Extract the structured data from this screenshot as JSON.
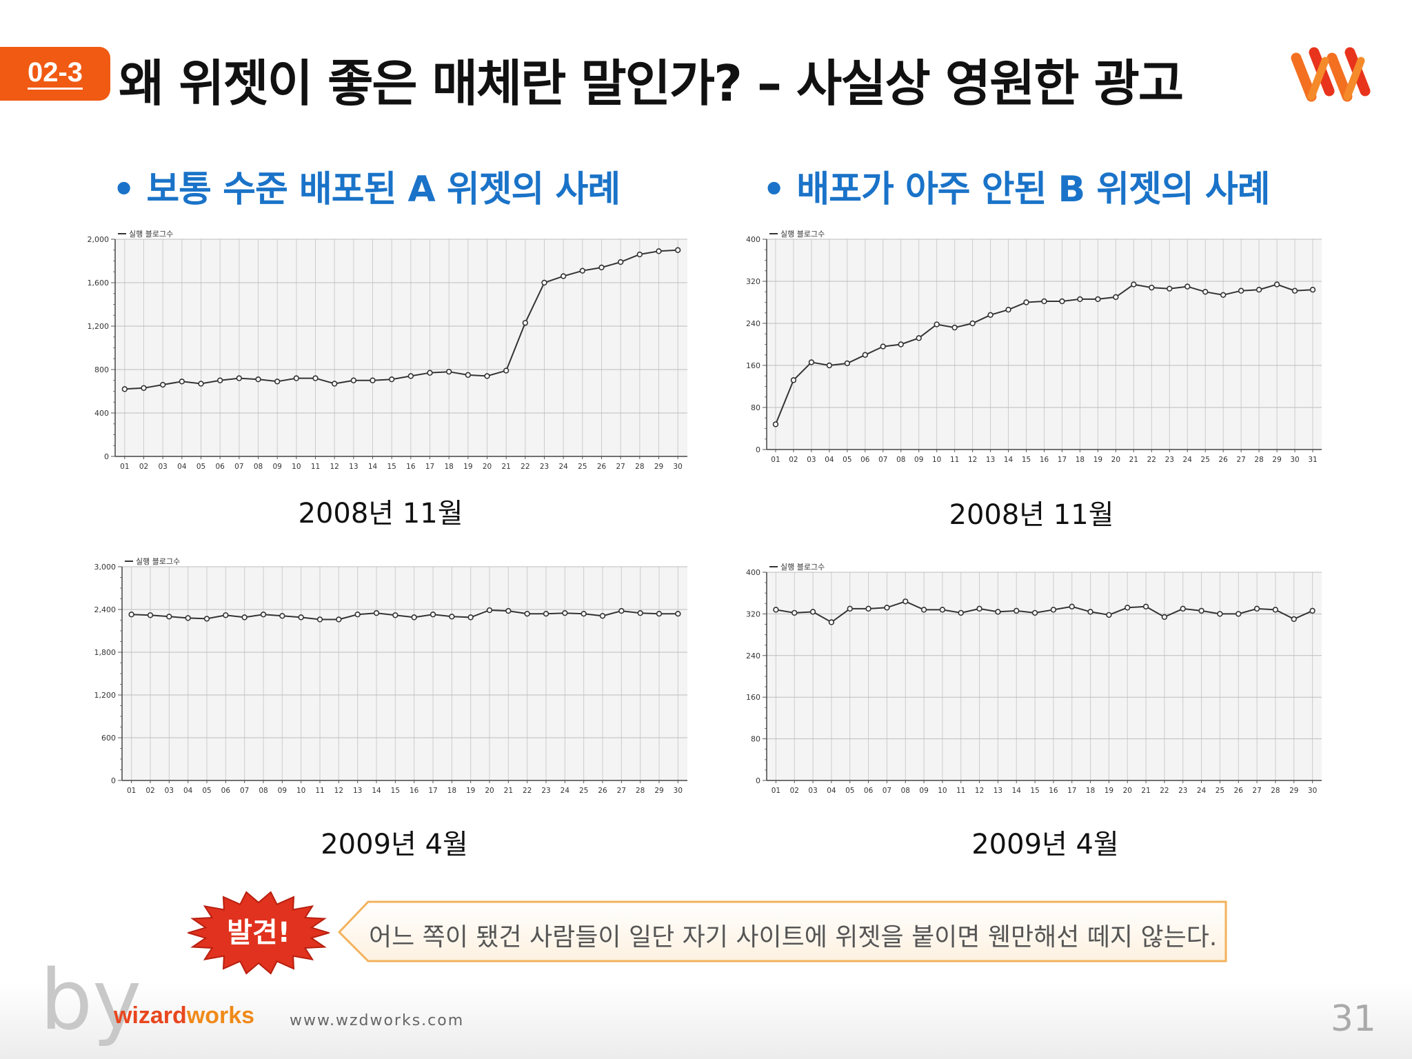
{
  "header": {
    "badge": "02-3",
    "title": "왜 위젯이 좋은 매체란 말인가? – 사실상 영원한 광고",
    "logo_icon": "wizardworks-w-logo-icon"
  },
  "sections": {
    "left": "• 보통 수준 배포된 A 위젯의 사례",
    "right": "• 배포가 아주 안된 B 위젯의 사례"
  },
  "captions": {
    "a_2008": "2008년 11월",
    "b_2008": "2008년 11월",
    "a_2009": "2009년 4월",
    "b_2009": "2009년 4월"
  },
  "colors": {
    "badge": "#f05a12",
    "section_text": "#1a73c8",
    "line": "#333333",
    "grid": "#cccccc",
    "plot_bg": "#f4f4f4",
    "burst": "#e0321e",
    "callout_border": "#f2b25c"
  },
  "chart_data": [
    {
      "id": "a2008",
      "type": "line",
      "legend": "실행 블로그수",
      "x": [
        "01",
        "02",
        "03",
        "04",
        "05",
        "06",
        "07",
        "08",
        "09",
        "10",
        "11",
        "12",
        "13",
        "14",
        "15",
        "16",
        "17",
        "18",
        "19",
        "20",
        "21",
        "22",
        "23",
        "24",
        "25",
        "26",
        "27",
        "28",
        "29",
        "30"
      ],
      "ylim": [
        0,
        2000
      ],
      "yticks": [
        "0",
        "400",
        "800",
        "1,200",
        "1,600",
        "2,000"
      ],
      "ytick_values": [
        0,
        400,
        800,
        1200,
        1600,
        2000
      ],
      "series": [
        {
          "values": [
            620,
            630,
            660,
            690,
            670,
            700,
            720,
            710,
            690,
            720,
            720,
            670,
            700,
            700,
            710,
            740,
            770,
            780,
            750,
            740,
            790,
            1230,
            1600,
            1660,
            1710,
            1740,
            1790,
            1860,
            1890,
            1900
          ]
        }
      ]
    },
    {
      "id": "b2008",
      "type": "line",
      "legend": "실행 블로그수",
      "x": [
        "01",
        "02",
        "03",
        "04",
        "05",
        "06",
        "07",
        "08",
        "09",
        "10",
        "11",
        "12",
        "13",
        "14",
        "15",
        "16",
        "17",
        "18",
        "19",
        "20",
        "21",
        "22",
        "23",
        "24",
        "25",
        "26",
        "27",
        "28",
        "29",
        "30",
        "31"
      ],
      "ylim": [
        0,
        400
      ],
      "yticks": [
        "0",
        "80",
        "160",
        "240",
        "320",
        "400"
      ],
      "ytick_values": [
        0,
        80,
        160,
        240,
        320,
        400
      ],
      "series": [
        {
          "values": [
            48,
            132,
            166,
            160,
            164,
            180,
            196,
            200,
            212,
            238,
            232,
            240,
            256,
            266,
            280,
            282,
            282,
            286,
            286,
            290,
            314,
            308,
            306,
            310,
            300,
            294,
            302,
            304,
            314,
            302,
            304
          ]
        }
      ]
    },
    {
      "id": "a2009",
      "type": "line",
      "legend": "실행 블로그수",
      "x": [
        "01",
        "02",
        "03",
        "04",
        "05",
        "06",
        "07",
        "08",
        "09",
        "10",
        "11",
        "12",
        "13",
        "14",
        "15",
        "16",
        "17",
        "18",
        "19",
        "20",
        "21",
        "22",
        "23",
        "24",
        "25",
        "26",
        "27",
        "28",
        "29",
        "30"
      ],
      "ylim": [
        0,
        3000
      ],
      "yticks": [
        "0",
        "600",
        "1,200",
        "1,800",
        "2,400",
        "3,000"
      ],
      "ytick_values": [
        0,
        600,
        1200,
        1800,
        2400,
        3000
      ],
      "series": [
        {
          "values": [
            2330,
            2320,
            2300,
            2280,
            2270,
            2320,
            2290,
            2330,
            2310,
            2290,
            2260,
            2260,
            2330,
            2350,
            2320,
            2290,
            2330,
            2300,
            2290,
            2390,
            2380,
            2340,
            2340,
            2350,
            2340,
            2310,
            2380,
            2350,
            2340,
            2340
          ]
        }
      ]
    },
    {
      "id": "b2009",
      "type": "line",
      "legend": "실행 블로그수",
      "x": [
        "01",
        "02",
        "03",
        "04",
        "05",
        "06",
        "07",
        "08",
        "09",
        "10",
        "11",
        "12",
        "13",
        "14",
        "15",
        "16",
        "17",
        "18",
        "19",
        "20",
        "21",
        "22",
        "23",
        "24",
        "25",
        "26",
        "27",
        "28",
        "29",
        "30"
      ],
      "ylim": [
        0,
        400
      ],
      "yticks": [
        "0",
        "80",
        "160",
        "240",
        "320",
        "400"
      ],
      "ytick_values": [
        0,
        80,
        160,
        240,
        320,
        400
      ],
      "series": [
        {
          "values": [
            328,
            322,
            324,
            304,
            330,
            330,
            332,
            344,
            328,
            328,
            322,
            330,
            324,
            326,
            322,
            328,
            334,
            324,
            318,
            332,
            334,
            314,
            330,
            326,
            320,
            320,
            330,
            328,
            310,
            326
          ]
        }
      ]
    }
  ],
  "callout": {
    "burst_label": "발견!",
    "text": "어느 쪽이 됐건 사람들이 일단 자기 사이트에 위젯을 붙이면 웬만해선 떼지 않는다."
  },
  "footer": {
    "by": "by",
    "brand_part1": "wizard",
    "brand_part2": "works",
    "url": "www.wzdworks.com",
    "page": "31"
  }
}
